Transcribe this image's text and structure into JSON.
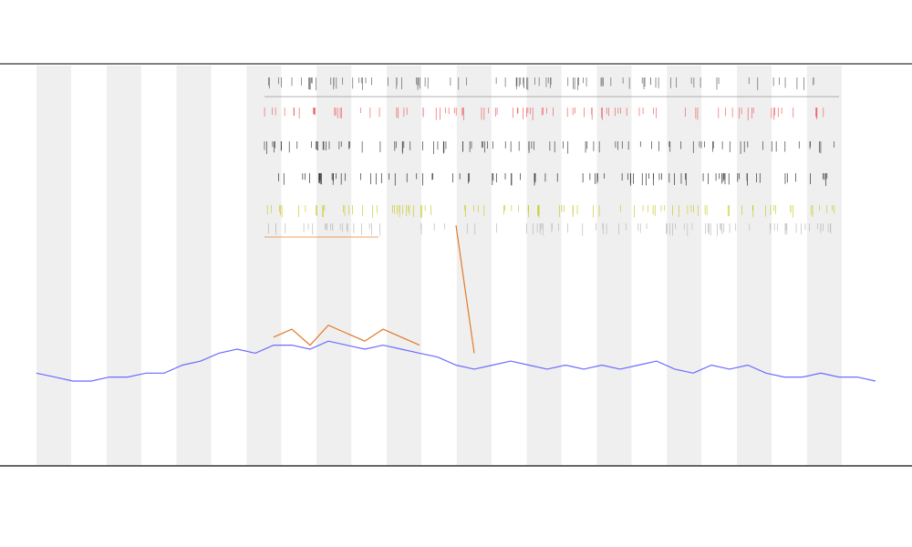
{
  "chart_data": {
    "type": "line",
    "ylim": [
      0,
      100
    ],
    "series": [
      {
        "color": "#6b6bff",
        "values": [
          23,
          22,
          21,
          21,
          22,
          22,
          23,
          23,
          25,
          26,
          28,
          29,
          28,
          30,
          30,
          29,
          31,
          30,
          29,
          30,
          29,
          28,
          27,
          25,
          24,
          25,
          26,
          25,
          24,
          25,
          24,
          25,
          24,
          25,
          26,
          24,
          23,
          25,
          24,
          25,
          23,
          22,
          22,
          23,
          22,
          22,
          21
        ]
      },
      {
        "color": "#e07a2a",
        "values": [
          null,
          null,
          null,
          null,
          null,
          null,
          null,
          null,
          null,
          null,
          null,
          null,
          null,
          32,
          34,
          30,
          35,
          33,
          31,
          34,
          32,
          30,
          null,
          60,
          28,
          null,
          null,
          null,
          null,
          null,
          null,
          null,
          null,
          null,
          null,
          null,
          null,
          null,
          null,
          null,
          null,
          null,
          null,
          null,
          null,
          null,
          null
        ]
      }
    ]
  }
}
